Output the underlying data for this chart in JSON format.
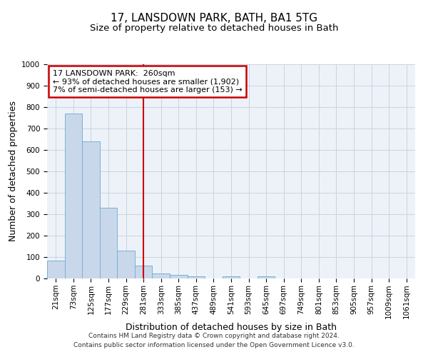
{
  "title1": "17, LANSDOWN PARK, BATH, BA1 5TG",
  "title2": "Size of property relative to detached houses in Bath",
  "xlabel": "Distribution of detached houses by size in Bath",
  "ylabel": "Number of detached properties",
  "categories": [
    "21sqm",
    "73sqm",
    "125sqm",
    "177sqm",
    "229sqm",
    "281sqm",
    "333sqm",
    "385sqm",
    "437sqm",
    "489sqm",
    "541sqm",
    "593sqm",
    "645sqm",
    "697sqm",
    "749sqm",
    "801sqm",
    "853sqm",
    "905sqm",
    "957sqm",
    "1009sqm",
    "1061sqm"
  ],
  "values": [
    85,
    770,
    640,
    330,
    130,
    60,
    25,
    17,
    10,
    0,
    10,
    0,
    10,
    0,
    0,
    0,
    0,
    0,
    0,
    0,
    0
  ],
  "bar_color": "#c8d8ea",
  "bar_edge_color": "#7ab0d4",
  "bar_width": 1.0,
  "ylim": [
    0,
    1000
  ],
  "yticks": [
    0,
    100,
    200,
    300,
    400,
    500,
    600,
    700,
    800,
    900,
    1000
  ],
  "vline_x": 5.0,
  "vline_color": "#cc0000",
  "ann_line1": "17 LANSDOWN PARK:  260sqm",
  "ann_line2": "← 93% of detached houses are smaller (1,902)",
  "ann_line3": "7% of semi-detached houses are larger (153) →",
  "annotation_box_color": "#cc0000",
  "footer_line1": "Contains HM Land Registry data © Crown copyright and database right 2024.",
  "footer_line2": "Contains public sector information licensed under the Open Government Licence v3.0.",
  "background_color": "#ffffff",
  "plot_bg_color": "#edf2f9",
  "grid_color": "#c8d4e0",
  "title1_fontsize": 11,
  "title2_fontsize": 9.5,
  "xlabel_fontsize": 9,
  "ylabel_fontsize": 9,
  "tick_fontsize": 7.5,
  "ann_fontsize": 8,
  "footer_fontsize": 6.5
}
